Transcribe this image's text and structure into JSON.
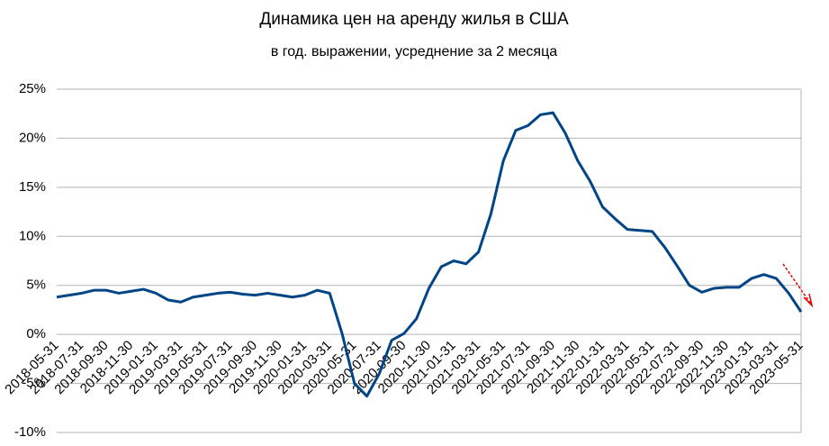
{
  "chart_data": {
    "type": "line",
    "title": "Динамика цен на аренду жилья в США",
    "subtitle": "в год. выражении, усреднение за 2 месяца",
    "categories": [
      "2018-05-31",
      null,
      "2018-07-31",
      null,
      "2018-09-30",
      null,
      "2018-11-30",
      null,
      "2019-01-31",
      null,
      "2019-03-31",
      null,
      "2019-05-31",
      null,
      "2019-07-31",
      null,
      "2019-09-30",
      null,
      "2019-11-30",
      null,
      "2020-01-31",
      null,
      "2020-03-31",
      null,
      "2020-05-31",
      null,
      "2020-07-31",
      null,
      "2020-09-30",
      null,
      "2020-11-30",
      null,
      "2021-01-31",
      null,
      "2021-03-31",
      null,
      "2021-05-31",
      null,
      "2021-07-31",
      null,
      "2021-09-30",
      null,
      "2021-11-30",
      null,
      "2022-01-31",
      null,
      "2022-03-31",
      null,
      "2022-05-31",
      null,
      "2022-07-31",
      null,
      "2022-09-30",
      null,
      "2022-11-30",
      null,
      "2023-01-31",
      null,
      "2023-03-31",
      null,
      "2023-05-31"
    ],
    "series": [
      {
        "name": "Динамика",
        "color": "#004586",
        "values": [
          3.8,
          4.0,
          4.2,
          4.5,
          4.5,
          4.2,
          4.4,
          4.6,
          4.2,
          3.5,
          3.3,
          3.8,
          4.0,
          4.2,
          4.3,
          4.1,
          4.0,
          4.2,
          4.0,
          3.8,
          4.0,
          4.5,
          4.2,
          0.1,
          -5.0,
          -6.3,
          -4.0,
          -0.6,
          0.1,
          1.6,
          4.7,
          6.9,
          7.5,
          7.2,
          8.4,
          12.3,
          17.7,
          20.8,
          21.3,
          22.4,
          22.6,
          20.5,
          17.7,
          15.6,
          13.0,
          11.8,
          10.7,
          10.6,
          10.5,
          8.9,
          7.0,
          5.0,
          4.3,
          4.7,
          4.8,
          4.8,
          5.7,
          6.1,
          5.7,
          4.2,
          2.3
        ]
      }
    ],
    "ylim": [
      -10,
      25
    ],
    "yticks": [
      {
        "value": -10,
        "label": "-10%"
      },
      {
        "value": -5,
        "label": "-5%"
      },
      {
        "value": 0,
        "label": "0%"
      },
      {
        "value": 5,
        "label": "5%"
      },
      {
        "value": 10,
        "label": "10%"
      },
      {
        "value": 15,
        "label": "15%"
      },
      {
        "value": 20,
        "label": "20%"
      },
      {
        "value": 25,
        "label": "25%"
      }
    ],
    "grid": true
  }
}
